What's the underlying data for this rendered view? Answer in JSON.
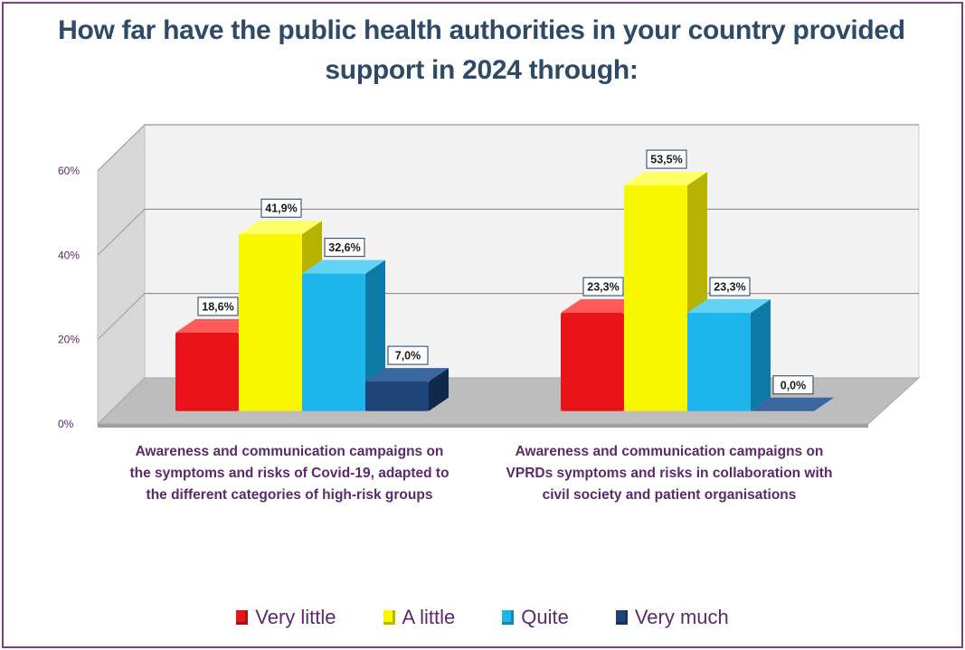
{
  "chart_data": {
    "type": "bar",
    "title": "How far have the public health authorities in your country provided support in 2024 through:",
    "categories": [
      "Awareness and communication campaigns on the symptoms and risks of Covid-19, adapted to the different categories of high-risk groups",
      "Awareness and communication campaigns on VPRDs symptoms and risks in collaboration with civil society and patient organisations"
    ],
    "category_lines": [
      [
        "Awareness and communication campaigns on",
        "the symptoms and risks of Covid-19, adapted to",
        "the different categories of high-risk groups"
      ],
      [
        "Awareness and communication campaigns on",
        "VPRDs symptoms and risks in collaboration with",
        "civil society and patient organisations"
      ]
    ],
    "series": [
      {
        "name": "Very little",
        "values": [
          18.6,
          23.3
        ],
        "labels": [
          "18,6%",
          "23,3%"
        ],
        "color": "#e8141a",
        "side": "#a60c10",
        "top": "#ff5a5a"
      },
      {
        "name": "A little",
        "values": [
          41.9,
          53.5
        ],
        "labels": [
          "41,9%",
          "53,5%"
        ],
        "color": "#f7f700",
        "side": "#b5b300",
        "top": "#ffff66"
      },
      {
        "name": "Quite",
        "values": [
          32.6,
          23.3
        ],
        "labels": [
          "32,6%",
          "23,3%"
        ],
        "color": "#1eb4ec",
        "side": "#0d7aa8",
        "top": "#63d2f7"
      },
      {
        "name": "Very much",
        "values": [
          7.0,
          0.0
        ],
        "labels": [
          "7,0%",
          "0,0%"
        ],
        "color": "#1f4478",
        "side": "#102849",
        "top": "#3a679f"
      }
    ],
    "yticks": [
      "0%",
      "20%",
      "40%",
      "60%"
    ],
    "ylim": [
      0,
      60
    ],
    "legend_position": "bottom",
    "grid": true
  }
}
